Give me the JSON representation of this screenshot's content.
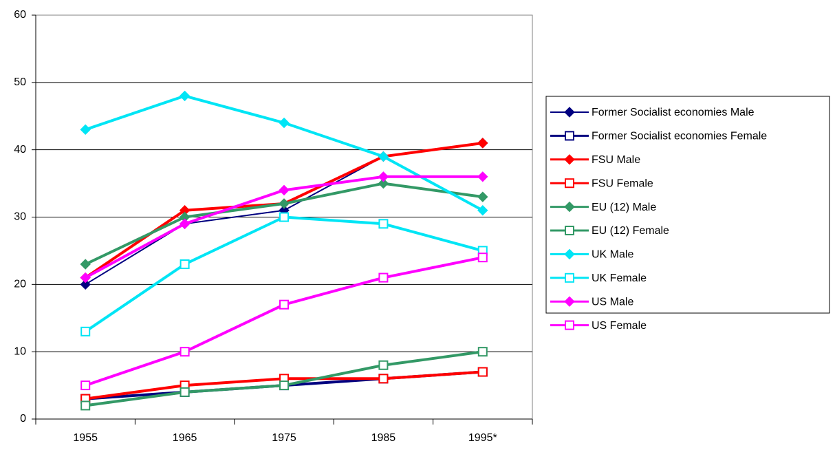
{
  "chart_data": {
    "type": "line",
    "categories": [
      "1955",
      "1965",
      "1975",
      "1985",
      "1995*"
    ],
    "ylim": [
      0,
      60
    ],
    "yticks": [
      0,
      10,
      20,
      30,
      40,
      50,
      60
    ],
    "grid": true,
    "legend": "right",
    "series": [
      {
        "name": "Former Socialist economies Male",
        "color": "#000080",
        "marker": "diamond",
        "values": [
          20,
          29,
          31,
          39,
          41
        ]
      },
      {
        "name": "Former Socialist economies Female",
        "color": "#000080",
        "marker": "square",
        "values": [
          3,
          4,
          5,
          6,
          7
        ]
      },
      {
        "name": "FSU Male",
        "color": "#ff0000",
        "marker": "diamond",
        "values": [
          21,
          31,
          32,
          39,
          41
        ]
      },
      {
        "name": "FSU Female",
        "color": "#ff0000",
        "marker": "square",
        "values": [
          3,
          5,
          6,
          6,
          7
        ]
      },
      {
        "name": "EU (12) Male",
        "color": "#339966",
        "marker": "diamond",
        "values": [
          23,
          30,
          32,
          35,
          33
        ]
      },
      {
        "name": "EU (12) Female",
        "color": "#339966",
        "marker": "square",
        "values": [
          2,
          4,
          5,
          8,
          10
        ]
      },
      {
        "name": "UK Male",
        "color": "#00e5f5",
        "marker": "diamond",
        "values": [
          43,
          48,
          44,
          39,
          31
        ]
      },
      {
        "name": "UK Female",
        "color": "#00e5f5",
        "marker": "square",
        "values": [
          13,
          23,
          30,
          29,
          25
        ]
      },
      {
        "name": "US Male",
        "color": "#ff00ff",
        "marker": "diamond",
        "values": [
          21,
          29,
          34,
          36,
          36
        ]
      },
      {
        "name": "US Female",
        "color": "#ff00ff",
        "marker": "square",
        "values": [
          5,
          10,
          17,
          21,
          24
        ]
      }
    ]
  }
}
